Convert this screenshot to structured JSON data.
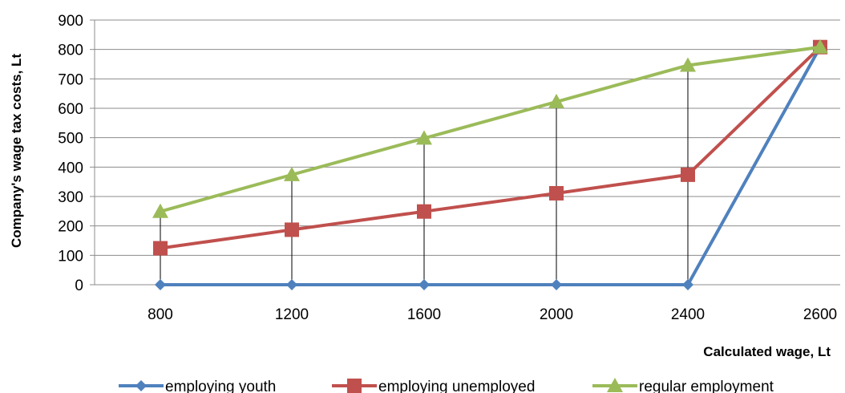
{
  "chart_data": {
    "type": "line",
    "title": "",
    "xlabel": "Calculated wage, Lt",
    "ylabel": "Company's wage tax costs, Lt",
    "categories": [
      "800",
      "1200",
      "1600",
      "2000",
      "2400",
      "2600"
    ],
    "ylim": [
      0,
      900
    ],
    "yticks": [
      "0",
      "100",
      "200",
      "300",
      "400",
      "500",
      "600",
      "700",
      "800",
      "900"
    ],
    "grid": true,
    "legend_position": "bottom",
    "series": [
      {
        "name": "employing youth",
        "values": [
          0,
          0,
          0,
          0,
          0,
          808
        ],
        "color": "#4F81BD",
        "marker": "diamond"
      },
      {
        "name": "employing unemployed",
        "values": [
          124,
          187,
          249,
          311,
          374,
          808
        ],
        "color": "#C0504D",
        "marker": "square"
      },
      {
        "name": "regular employment",
        "values": [
          249,
          374,
          498,
          622,
          746,
          808
        ],
        "color": "#9BBB59",
        "marker": "triangle"
      }
    ],
    "drop_lines": true
  }
}
